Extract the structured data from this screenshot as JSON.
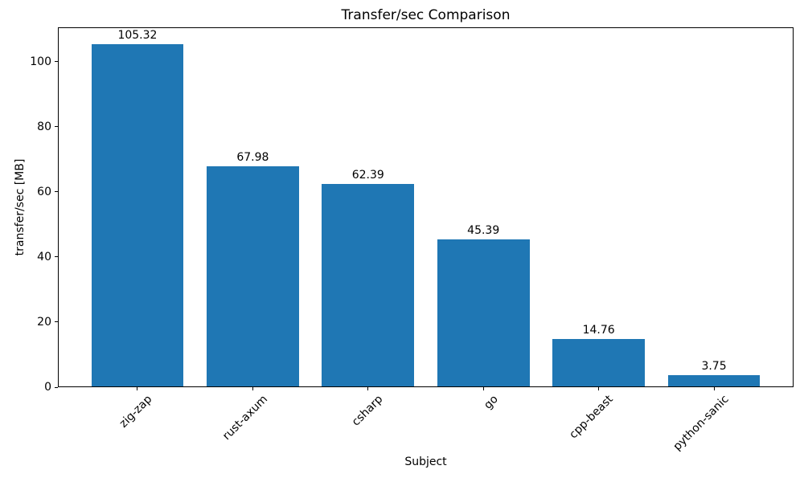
{
  "chart_data": {
    "type": "bar",
    "title": "Transfer/sec Comparison",
    "xlabel": "Subject",
    "ylabel": "transfer/sec [MB]",
    "categories": [
      "zig-zap",
      "rust-axum",
      "csharp",
      "go",
      "cpp-beast",
      "python-sanic"
    ],
    "values": [
      105.32,
      67.98,
      62.39,
      45.39,
      14.76,
      3.75
    ],
    "bar_labels": [
      "105.32",
      "67.98",
      "62.39",
      "45.39",
      "14.76",
      "3.75"
    ],
    "yticks": [
      0,
      20,
      40,
      60,
      80,
      100
    ],
    "ylim": [
      0,
      110.59
    ],
    "bar_color": "#1f77b4",
    "text_color": "#000000",
    "grid": false,
    "x_tick_rotation_deg": 45
  }
}
